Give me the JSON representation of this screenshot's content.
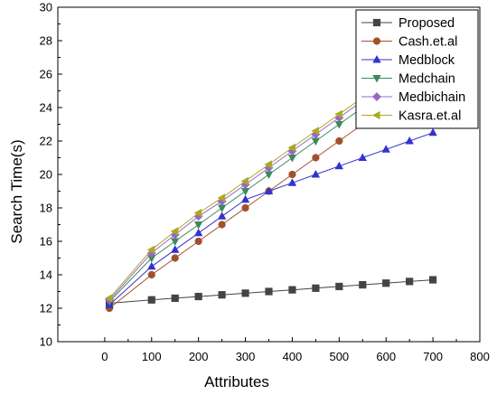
{
  "chart_data": {
    "type": "line",
    "xlabel": "Attributes",
    "ylabel": "Search Time(s)",
    "xlim": [
      -100,
      800
    ],
    "ylim": [
      10,
      30
    ],
    "xticks": [
      0,
      100,
      200,
      300,
      400,
      500,
      600,
      700,
      800
    ],
    "yticks": [
      10,
      12,
      14,
      16,
      18,
      20,
      22,
      24,
      26,
      28,
      30
    ],
    "grid": false,
    "legend_position": "top-right",
    "series": [
      {
        "name": "Proposed",
        "color": "#444444",
        "marker": "square",
        "x": [
          10,
          100,
          150,
          200,
          250,
          300,
          350,
          400,
          450,
          500,
          550,
          600,
          650,
          700
        ],
        "y": [
          12.3,
          12.5,
          12.6,
          12.7,
          12.8,
          12.9,
          13.0,
          13.1,
          13.2,
          13.3,
          13.4,
          13.5,
          13.6,
          13.7
        ]
      },
      {
        "name": "Cash.et.al",
        "color": "#a0522d",
        "marker": "circle",
        "x": [
          10,
          100,
          150,
          200,
          250,
          300,
          350,
          400,
          450,
          500,
          550,
          600,
          650,
          700
        ],
        "y": [
          12.0,
          14.0,
          15.0,
          16.0,
          17.0,
          18.0,
          19.0,
          20.0,
          21.0,
          22.0,
          23.0,
          24.0,
          25.0,
          25.5
        ]
      },
      {
        "name": "Medblock",
        "color": "#3333cc",
        "marker": "triangle-up",
        "x": [
          10,
          100,
          150,
          200,
          250,
          300,
          350,
          400,
          450,
          500,
          550,
          600,
          650,
          700
        ],
        "y": [
          12.2,
          14.5,
          15.5,
          16.5,
          17.5,
          18.5,
          19.0,
          19.5,
          20.0,
          20.5,
          21.0,
          21.5,
          22.0,
          22.5
        ]
      },
      {
        "name": "Medchain",
        "color": "#3a8a5c",
        "marker": "triangle-down",
        "x": [
          10,
          100,
          150,
          200,
          250,
          300,
          350,
          400,
          450,
          500,
          550,
          600,
          650,
          700
        ],
        "y": [
          12.4,
          15.0,
          16.0,
          17.0,
          18.0,
          19.0,
          20.0,
          21.0,
          22.0,
          23.0,
          24.0,
          25.0,
          26.0,
          26.5
        ]
      },
      {
        "name": "Medbichain",
        "color": "#9966cc",
        "marker": "diamond",
        "x": [
          10,
          100,
          150,
          200,
          250,
          300,
          350,
          400,
          450,
          500,
          550,
          600,
          650,
          700
        ],
        "y": [
          12.5,
          15.3,
          16.4,
          17.5,
          18.4,
          19.4,
          20.4,
          21.4,
          22.4,
          23.4,
          24.4,
          25.4,
          26.4,
          26.8
        ]
      },
      {
        "name": "Kasra.et.al",
        "color": "#aaaa22",
        "marker": "triangle-left",
        "x": [
          10,
          100,
          150,
          200,
          250,
          300,
          350,
          400,
          450,
          500,
          550,
          600,
          650,
          700
        ],
        "y": [
          12.6,
          15.5,
          16.6,
          17.7,
          18.6,
          19.6,
          20.6,
          21.6,
          22.6,
          23.6,
          24.6,
          25.6,
          26.6,
          27.2
        ]
      }
    ]
  }
}
